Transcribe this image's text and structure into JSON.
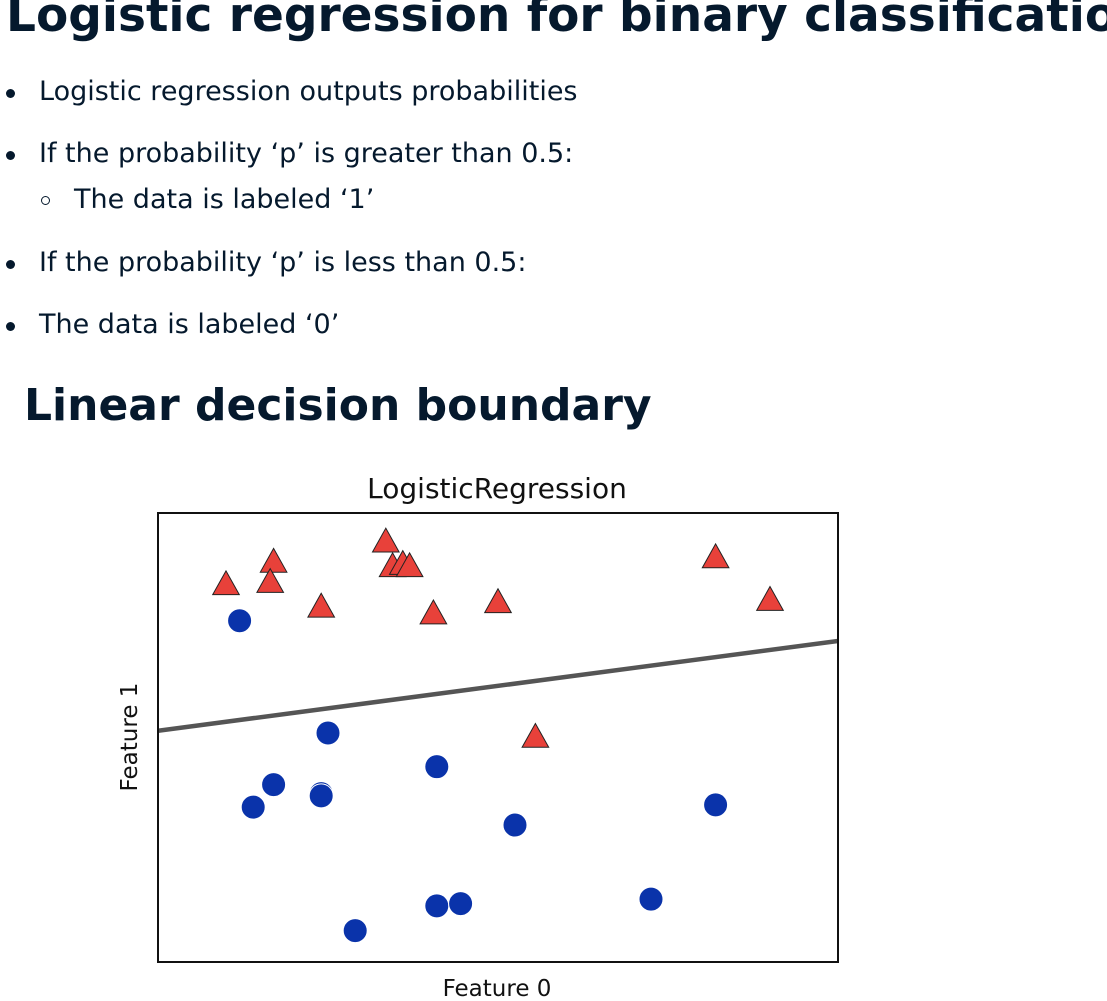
{
  "slide": {
    "title": "Logistic regression for binary classification",
    "bullets": [
      {
        "text": "Logistic regression outputs probabilities",
        "level": 0
      },
      {
        "text": "If the probability ‘p’ is greater than 0.5:",
        "level": 0
      },
      {
        "text": "The data is labeled ‘1’",
        "level": 1
      },
      {
        "text": "If the probability ‘p’ is less than 0.5:",
        "level": 0
      },
      {
        "text": "The data is labeled ‘0’",
        "level": 0
      }
    ],
    "subtitle": "Linear decision boundary"
  },
  "colors": {
    "text": "#05192d",
    "class_1": "#e8413a",
    "class_0": "#0a33aa",
    "boundary": "#555555"
  },
  "chart_data": {
    "type": "scatter",
    "title": "LogisticRegression",
    "xlabel": "Feature 0",
    "ylabel": "Feature 1",
    "xlim": [
      0,
      100
    ],
    "ylim": [
      0,
      100
    ],
    "grid": false,
    "legend": "none",
    "series": [
      {
        "marker": "triangle",
        "class_label": "1",
        "points": [
          [
            10.0,
            84.0
          ],
          [
            17.0,
            89.0
          ],
          [
            16.5,
            84.5
          ],
          [
            24.0,
            79.0
          ],
          [
            33.5,
            93.5
          ],
          [
            34.5,
            88.0
          ],
          [
            36.0,
            88.5
          ],
          [
            37.0,
            88.0
          ],
          [
            40.5,
            77.5
          ],
          [
            50.0,
            80.0
          ],
          [
            55.5,
            50.0
          ],
          [
            82.0,
            90.0
          ],
          [
            90.0,
            80.5
          ]
        ]
      },
      {
        "marker": "circle",
        "class_label": "0",
        "points": [
          [
            12.0,
            76.0
          ],
          [
            25.0,
            51.0
          ],
          [
            41.0,
            43.5
          ],
          [
            17.0,
            39.5
          ],
          [
            14.0,
            34.5
          ],
          [
            24.0,
            37.5
          ],
          [
            24.0,
            37.0
          ],
          [
            52.5,
            30.5
          ],
          [
            82.0,
            35.0
          ],
          [
            41.0,
            12.5
          ],
          [
            44.5,
            13.0
          ],
          [
            72.5,
            14.0
          ],
          [
            29.0,
            7.0
          ]
        ]
      }
    ],
    "decision_boundary": {
      "x": [
        0,
        100
      ],
      "y": [
        51.5,
        71.5
      ]
    }
  }
}
